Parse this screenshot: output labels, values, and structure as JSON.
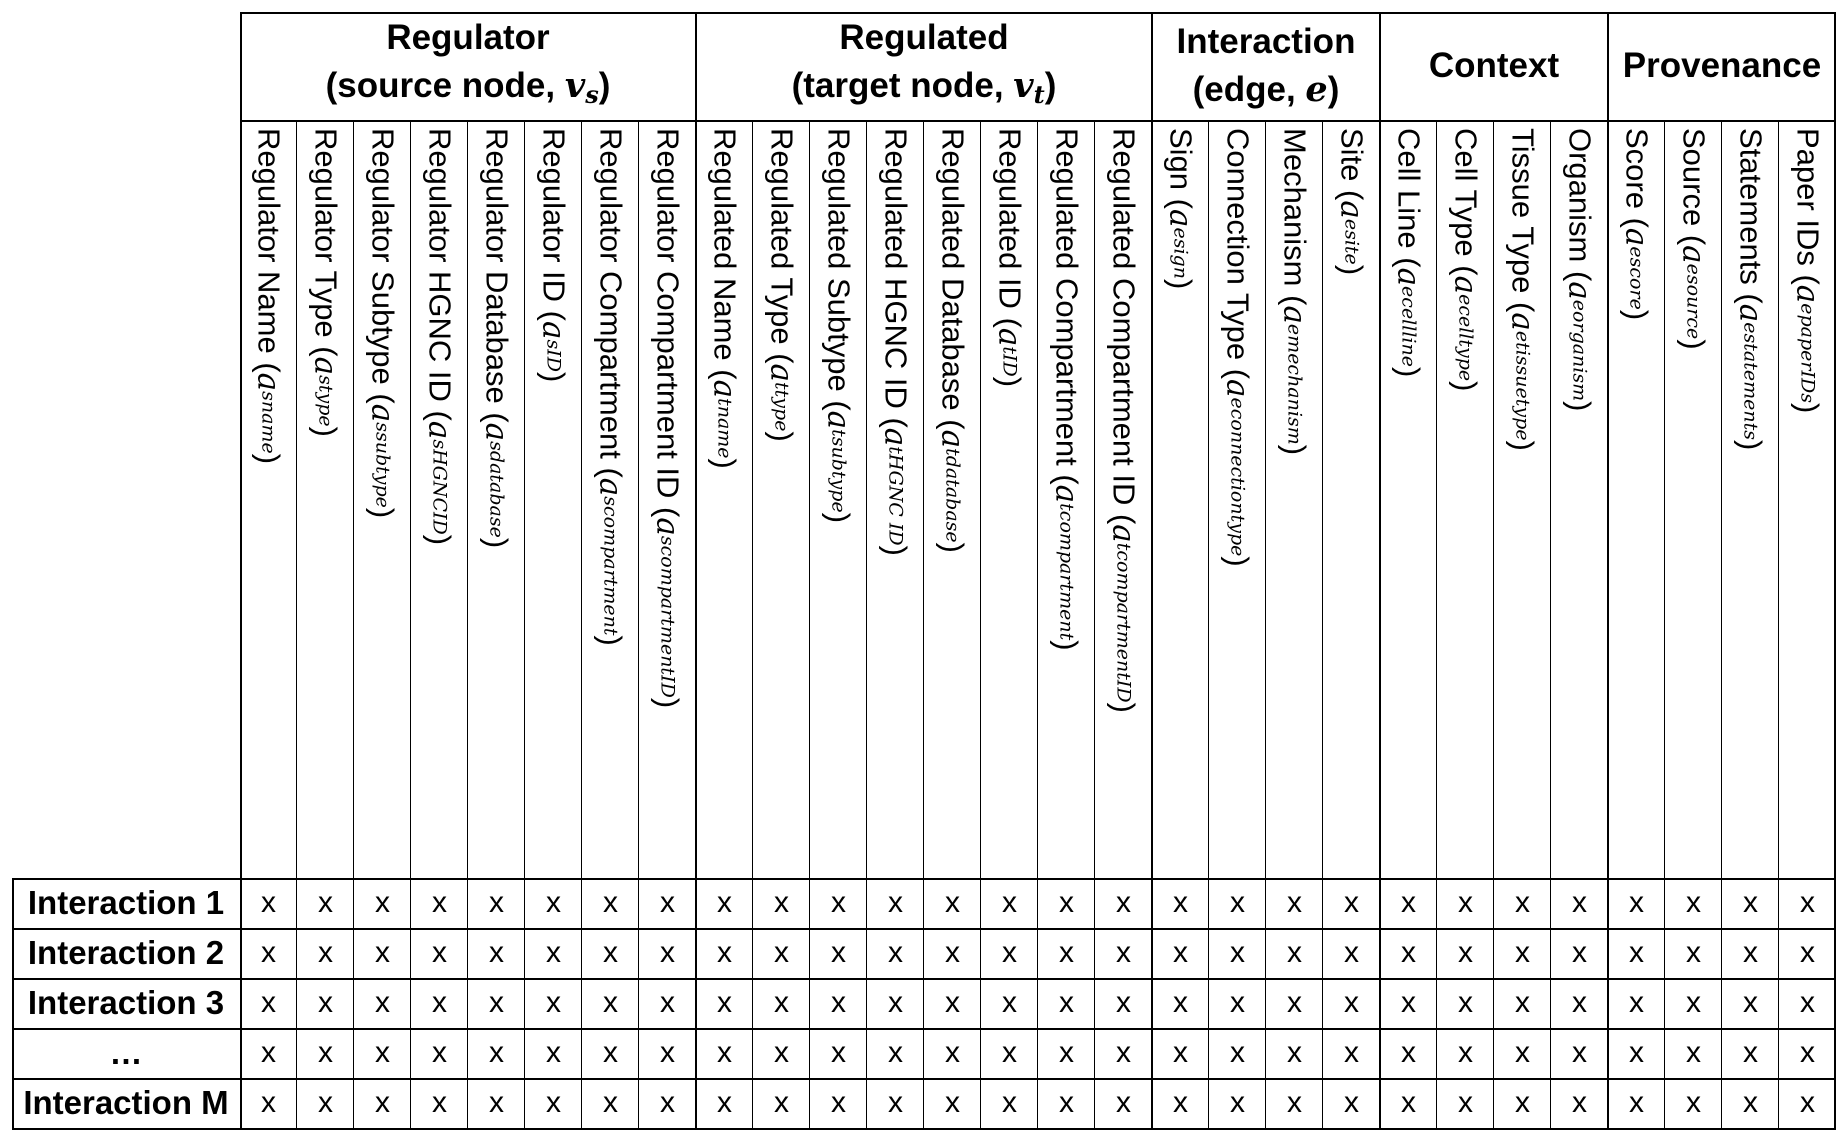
{
  "groups": [
    {
      "title": "Regulator",
      "sub_pre": "(source node, ",
      "sub_var": "v",
      "sub_idx": "s",
      "sub_post": ")"
    },
    {
      "title": "Regulated",
      "sub_pre": "(target node, ",
      "sub_var": "v",
      "sub_idx": "t",
      "sub_post": ")"
    },
    {
      "title": "Interaction",
      "sub_pre": "(edge, ",
      "sub_var": "e",
      "sub_idx": "",
      "sub_post": ")"
    },
    {
      "title": "Context",
      "sub_pre": "",
      "sub_var": "",
      "sub_idx": "",
      "sub_post": ""
    },
    {
      "title": "Provenance",
      "sub_pre": "",
      "sub_var": "",
      "sub_idx": "",
      "sub_post": ""
    }
  ],
  "columns": [
    {
      "group": 0,
      "label": "Regulator Name",
      "sub": "s",
      "sup": "name"
    },
    {
      "group": 0,
      "label": "Regulator Type",
      "sub": "s",
      "sup": "type"
    },
    {
      "group": 0,
      "label": "Regulator Subtype",
      "sub": "s",
      "sup": "subtype"
    },
    {
      "group": 0,
      "label": "Regulator HGNC ID",
      "sub": "s",
      "sup": "HGNCID"
    },
    {
      "group": 0,
      "label": "Regulator Database",
      "sub": "s",
      "sup": "database"
    },
    {
      "group": 0,
      "label": "Regulator ID",
      "sub": "s",
      "sup": "ID"
    },
    {
      "group": 0,
      "label": "Regulator Compartment",
      "sub": "s",
      "sup": "compartment"
    },
    {
      "group": 0,
      "label": "Regulator Compartment ID",
      "sub": "s",
      "sup": "compartmentID"
    },
    {
      "group": 1,
      "label": "Regulated Name",
      "sub": "t",
      "sup": "name"
    },
    {
      "group": 1,
      "label": "Regulated Type",
      "sub": "t",
      "sup": "type"
    },
    {
      "group": 1,
      "label": "Regulated Subtype",
      "sub": "t",
      "sup": "subtype"
    },
    {
      "group": 1,
      "label": "Regulated HGNC ID",
      "sub": "t",
      "sup": "HGNC ID"
    },
    {
      "group": 1,
      "label": "Regulated Database",
      "sub": "t",
      "sup": "database"
    },
    {
      "group": 1,
      "label": "Regulated ID",
      "sub": "t",
      "sup": "ID"
    },
    {
      "group": 1,
      "label": "Regulated Compartment",
      "sub": "t",
      "sup": "compartment"
    },
    {
      "group": 1,
      "label": "Regulated Compartment ID",
      "sub": "t",
      "sup": "compartmentID"
    },
    {
      "group": 2,
      "label": "Sign",
      "sub": "e",
      "sup": "sign"
    },
    {
      "group": 2,
      "label": "Connection Type",
      "sub": "e",
      "sup": "connectiontype"
    },
    {
      "group": 2,
      "label": "Mechanism",
      "sub": "e",
      "sup": "mechanism"
    },
    {
      "group": 2,
      "label": "Site",
      "sub": "e",
      "sup": "site"
    },
    {
      "group": 3,
      "label": "Cell Line",
      "sub": "e",
      "sup": "cellline"
    },
    {
      "group": 3,
      "label": "Cell Type",
      "sub": "e",
      "sup": "celltype"
    },
    {
      "group": 3,
      "label": "Tissue Type",
      "sub": "e",
      "sup": "tissuetype"
    },
    {
      "group": 3,
      "label": "Organism",
      "sub": "e",
      "sup": "organism"
    },
    {
      "group": 4,
      "label": "Score",
      "sub": "e",
      "sup": "score"
    },
    {
      "group": 4,
      "label": "Source",
      "sub": "e",
      "sup": "source"
    },
    {
      "group": 4,
      "label": "Statements",
      "sub": "e",
      "sup": "statements"
    },
    {
      "group": 4,
      "label": "Paper IDs",
      "sub": "e",
      "sup": "paperIDs"
    }
  ],
  "rows": [
    "Interaction 1",
    "Interaction 2",
    "Interaction 3",
    "…",
    "Interaction M"
  ],
  "cell_mark": "x",
  "symbol_a": "a"
}
